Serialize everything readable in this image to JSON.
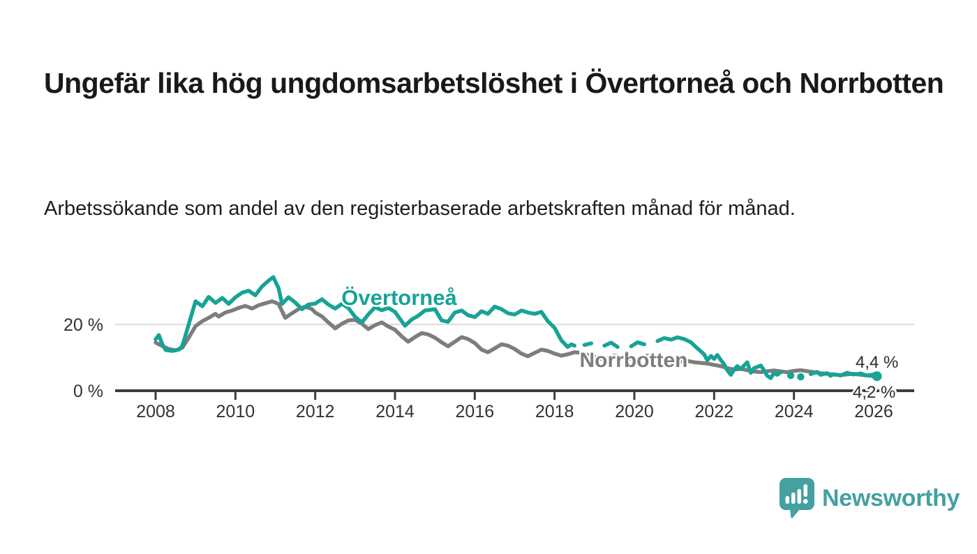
{
  "title": "Ungefär lika hög ungdomsarbetslöshet i Övertorneå och Norrbotten",
  "subtitle": "Arbetssökande som andel av den registerbaserade arbetskraften månad för månad.",
  "branding": {
    "logo_text": "Newsworthy",
    "logo_icon": "newsworthy-speech-bubble-bar-chart-icon",
    "logo_color": "#44a1a0"
  },
  "colors": {
    "overtornea_line": "#17a396",
    "norrbotten_line": "#7d7d7d",
    "axis": "#3d3d3d",
    "gridline": "#dcdcdc",
    "tick_text": "#333333",
    "end_label_text": "#2b2b2b",
    "background": "#ffffff"
  },
  "chart_data": {
    "type": "line",
    "title": "",
    "xlabel": "",
    "ylabel": "",
    "unit": "%",
    "xlim": [
      2007.0,
      2027.0
    ],
    "ylim": [
      0,
      36
    ],
    "x_ticks": [
      2008,
      2010,
      2012,
      2014,
      2016,
      2018,
      2020,
      2022,
      2024,
      2026
    ],
    "x_tick_labels": [
      "2008",
      "2010",
      "2012",
      "2014",
      "2016",
      "2018",
      "2020",
      "2022",
      "2024",
      "2026"
    ],
    "y_ticks": [
      {
        "value": 0,
        "label": "0 %"
      },
      {
        "value": 20,
        "label": "20 %"
      }
    ],
    "gridlines_y": [
      20
    ],
    "legend_position": "inline-labels",
    "series": [
      {
        "name": "Norrbotten",
        "color": "#7d7d7d",
        "end_label": "4,2 %",
        "points": [
          [
            2008.0,
            14.5
          ],
          [
            2008.17,
            13.5
          ],
          [
            2008.33,
            12.6
          ],
          [
            2008.5,
            12.2
          ],
          [
            2008.67,
            13.0
          ],
          [
            2008.83,
            16.0
          ],
          [
            2009.0,
            19.5
          ],
          [
            2009.17,
            21.0
          ],
          [
            2009.33,
            22.0
          ],
          [
            2009.5,
            23.2
          ],
          [
            2009.58,
            22.4
          ],
          [
            2009.75,
            23.6
          ],
          [
            2009.92,
            24.2
          ],
          [
            2010.08,
            25.0
          ],
          [
            2010.25,
            25.6
          ],
          [
            2010.42,
            24.8
          ],
          [
            2010.58,
            25.8
          ],
          [
            2010.75,
            26.4
          ],
          [
            2010.92,
            27.0
          ],
          [
            2011.08,
            26.2
          ],
          [
            2011.25,
            22.0
          ],
          [
            2011.42,
            23.4
          ],
          [
            2011.58,
            24.6
          ],
          [
            2011.75,
            25.4
          ],
          [
            2011.92,
            24.6
          ],
          [
            2012.0,
            23.6
          ],
          [
            2012.17,
            22.4
          ],
          [
            2012.33,
            20.6
          ],
          [
            2012.5,
            18.8
          ],
          [
            2012.67,
            20.2
          ],
          [
            2012.83,
            21.2
          ],
          [
            2013.0,
            21.4
          ],
          [
            2013.17,
            20.2
          ],
          [
            2013.33,
            18.6
          ],
          [
            2013.5,
            19.8
          ],
          [
            2013.67,
            20.6
          ],
          [
            2013.83,
            19.4
          ],
          [
            2014.0,
            18.4
          ],
          [
            2014.17,
            16.4
          ],
          [
            2014.33,
            14.8
          ],
          [
            2014.5,
            16.2
          ],
          [
            2014.67,
            17.4
          ],
          [
            2014.83,
            17.0
          ],
          [
            2015.0,
            16.0
          ],
          [
            2015.17,
            14.6
          ],
          [
            2015.33,
            13.4
          ],
          [
            2015.5,
            14.8
          ],
          [
            2015.67,
            16.2
          ],
          [
            2015.83,
            15.6
          ],
          [
            2016.0,
            14.4
          ],
          [
            2016.17,
            12.4
          ],
          [
            2016.33,
            11.6
          ],
          [
            2016.5,
            12.8
          ],
          [
            2016.67,
            14.0
          ],
          [
            2016.83,
            13.6
          ],
          [
            2017.0,
            12.6
          ],
          [
            2017.17,
            11.2
          ],
          [
            2017.33,
            10.4
          ],
          [
            2017.5,
            11.4
          ],
          [
            2017.67,
            12.4
          ],
          [
            2017.83,
            12.0
          ],
          [
            2018.0,
            11.2
          ],
          [
            2018.17,
            10.6
          ],
          [
            2018.33,
            11.0
          ],
          [
            2018.5,
            11.6
          ],
          [
            2018.67,
            11.4
          ],
          [
            2018.83,
            10.8
          ],
          [
            2019.0,
            10.2
          ],
          [
            2019.17,
            9.6
          ],
          [
            2019.33,
            10.0
          ],
          [
            2019.5,
            10.6
          ],
          [
            2019.67,
            10.2
          ],
          [
            2019.83,
            9.8
          ],
          [
            2020.0,
            9.4
          ],
          [
            2020.17,
            9.8
          ],
          [
            2020.33,
            10.6
          ],
          [
            2020.5,
            10.2
          ],
          [
            2020.67,
            9.8
          ],
          [
            2020.83,
            9.4
          ],
          [
            2021.0,
            9.0
          ],
          [
            2021.17,
            8.8
          ],
          [
            2021.33,
            9.0
          ],
          [
            2021.5,
            8.6
          ],
          [
            2021.67,
            8.4
          ],
          [
            2021.83,
            8.2
          ],
          [
            2022.0,
            7.8
          ],
          [
            2022.17,
            7.4
          ],
          [
            2022.33,
            6.8
          ],
          [
            2022.5,
            6.4
          ],
          [
            2022.67,
            6.6
          ],
          [
            2022.83,
            6.2
          ],
          [
            2023.0,
            5.8
          ],
          [
            2023.17,
            5.6
          ],
          [
            2023.33,
            5.9
          ],
          [
            2023.5,
            6.1
          ],
          [
            2023.67,
            5.8
          ],
          [
            2023.83,
            5.6
          ],
          [
            2024.0,
            6.0
          ],
          [
            2024.17,
            6.2
          ],
          [
            2024.33,
            5.9
          ],
          [
            2024.5,
            5.6
          ],
          [
            2024.67,
            5.3
          ],
          [
            2024.83,
            5.1
          ],
          [
            2025.0,
            4.9
          ],
          [
            2025.17,
            4.7
          ],
          [
            2025.33,
            4.9
          ],
          [
            2025.5,
            5.1
          ],
          [
            2025.67,
            4.8
          ],
          [
            2025.83,
            4.6
          ],
          [
            2026.0,
            4.4
          ],
          [
            2026.08,
            4.2
          ]
        ]
      },
      {
        "name": "Övertorneå",
        "color": "#17a396",
        "end_label": "4,4 %",
        "points": [
          [
            2008.0,
            15.5
          ],
          [
            2008.08,
            16.8
          ],
          [
            2008.17,
            14.0
          ],
          [
            2008.25,
            12.3
          ],
          [
            2008.42,
            12.0
          ],
          [
            2008.58,
            12.4
          ],
          [
            2008.67,
            13.5
          ],
          [
            2008.83,
            20.0
          ],
          [
            2009.0,
            27.0
          ],
          [
            2009.17,
            25.5
          ],
          [
            2009.33,
            28.3
          ],
          [
            2009.5,
            26.5
          ],
          [
            2009.67,
            28.0
          ],
          [
            2009.83,
            26.2
          ],
          [
            2010.0,
            28.2
          ],
          [
            2010.17,
            29.6
          ],
          [
            2010.33,
            30.2
          ],
          [
            2010.5,
            28.8
          ],
          [
            2010.67,
            31.5
          ],
          [
            2010.83,
            33.2
          ],
          [
            2010.95,
            34.3
          ],
          [
            2011.08,
            31.0
          ],
          [
            2011.17,
            26.2
          ],
          [
            2011.33,
            28.2
          ],
          [
            2011.5,
            26.6
          ],
          [
            2011.67,
            24.6
          ],
          [
            2011.83,
            26.0
          ],
          [
            2012.0,
            26.3
          ],
          [
            2012.17,
            27.6
          ],
          [
            2012.33,
            26.0
          ],
          [
            2012.5,
            24.8
          ],
          [
            2012.67,
            26.2
          ],
          [
            2012.83,
            25.0
          ],
          [
            2013.0,
            22.3
          ],
          [
            2013.17,
            20.6
          ],
          [
            2013.33,
            23.0
          ],
          [
            2013.5,
            25.2
          ],
          [
            2013.67,
            24.3
          ],
          [
            2013.83,
            25.0
          ],
          [
            2014.0,
            23.8
          ],
          [
            2014.25,
            19.6
          ],
          [
            2014.42,
            21.5
          ],
          [
            2014.58,
            22.6
          ],
          [
            2014.75,
            24.2
          ],
          [
            2015.0,
            24.6
          ],
          [
            2015.17,
            21.2
          ],
          [
            2015.33,
            20.8
          ],
          [
            2015.5,
            23.6
          ],
          [
            2015.67,
            24.2
          ],
          [
            2015.83,
            22.8
          ],
          [
            2016.0,
            22.2
          ],
          [
            2016.17,
            24.0
          ],
          [
            2016.33,
            23.2
          ],
          [
            2016.5,
            25.4
          ],
          [
            2016.67,
            24.6
          ],
          [
            2016.83,
            23.4
          ],
          [
            2017.0,
            23.0
          ],
          [
            2017.17,
            24.2
          ],
          [
            2017.33,
            23.6
          ],
          [
            2017.5,
            23.2
          ],
          [
            2017.67,
            23.8
          ],
          [
            2017.83,
            21.0
          ],
          [
            2018.0,
            19.0
          ],
          [
            2018.17,
            15.2
          ],
          [
            2018.33,
            13.2
          ],
          [
            2018.42,
            14.0
          ],
          [
            2018.5,
            13.6
          ],
          [
            2018.63,
            null
          ],
          [
            2018.75,
            13.8
          ],
          [
            2018.92,
            14.3
          ],
          [
            2019.08,
            null
          ],
          [
            2019.25,
            13.6
          ],
          [
            2019.42,
            14.5
          ],
          [
            2019.58,
            13.2
          ],
          [
            2019.75,
            null
          ],
          [
            2019.92,
            13.4
          ],
          [
            2020.08,
            14.6
          ],
          [
            2020.25,
            14.0
          ],
          [
            2020.42,
            null
          ],
          [
            2020.58,
            15.0
          ],
          [
            2020.75,
            15.9
          ],
          [
            2020.92,
            15.4
          ],
          [
            2021.08,
            16.1
          ],
          [
            2021.25,
            15.6
          ],
          [
            2021.42,
            14.6
          ],
          [
            2021.58,
            12.8
          ],
          [
            2021.75,
            11.0
          ],
          [
            2021.83,
            9.2
          ],
          [
            2021.92,
            10.5
          ],
          [
            2022.0,
            9.6
          ],
          [
            2022.08,
            10.8
          ],
          [
            2022.17,
            9.2
          ],
          [
            2022.25,
            8.0
          ],
          [
            2022.33,
            6.2
          ],
          [
            2022.42,
            4.8
          ],
          [
            2022.5,
            6.4
          ],
          [
            2022.58,
            7.4
          ],
          [
            2022.67,
            6.6
          ],
          [
            2022.83,
            8.6
          ],
          [
            2022.92,
            5.4
          ],
          [
            2023.0,
            6.8
          ],
          [
            2023.17,
            7.6
          ],
          [
            2023.25,
            6.2
          ],
          [
            2023.33,
            4.5
          ],
          [
            2023.42,
            3.8
          ],
          [
            2023.5,
            5.4
          ],
          [
            2023.58,
            4.8
          ],
          [
            2023.67,
            5.6
          ],
          [
            2023.79,
            null
          ],
          [
            2023.92,
            4.6
          ],
          [
            2024.04,
            null
          ],
          [
            2024.17,
            4.2
          ],
          [
            2024.29,
            null
          ],
          [
            2024.42,
            5.0
          ],
          [
            2024.58,
            5.7
          ],
          [
            2024.67,
            4.8
          ],
          [
            2024.83,
            5.3
          ],
          [
            2024.92,
            4.5
          ],
          [
            2025.0,
            5.0
          ],
          [
            2025.17,
            4.6
          ],
          [
            2025.33,
            5.4
          ],
          [
            2025.5,
            4.9
          ],
          [
            2025.67,
            5.2
          ],
          [
            2025.83,
            4.6
          ],
          [
            2026.0,
            4.9
          ],
          [
            2026.08,
            4.4
          ]
        ]
      }
    ]
  }
}
